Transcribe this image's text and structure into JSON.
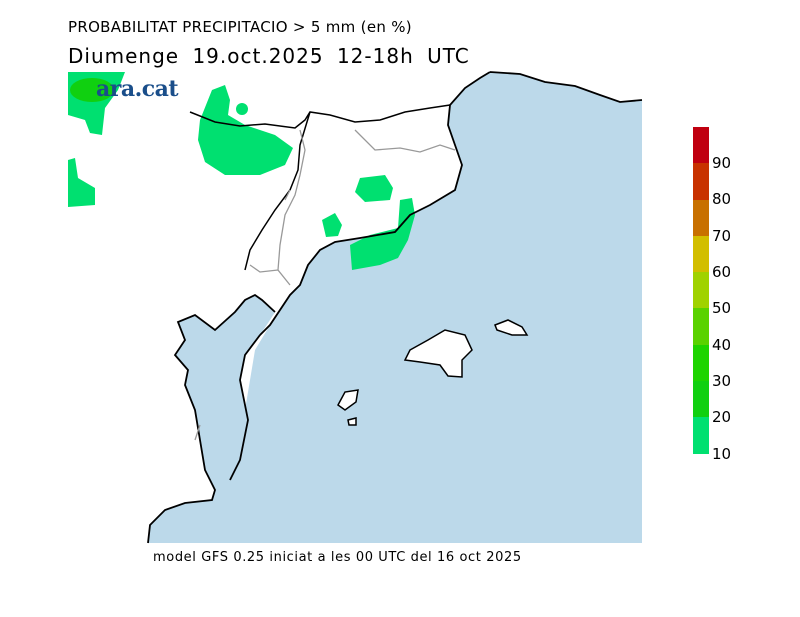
{
  "title": "PROBABILITAT PRECIPITACIO > 5 mm (en %)",
  "subtitle": "Diumenge  19.oct.2025 12-18h UTC",
  "logo": "ara.cat",
  "footer": "model GFS 0.25 iniciat a les 00 UTC del 16 oct 2025",
  "legend": {
    "labels": [
      "90",
      "80",
      "70",
      "60",
      "50",
      "40",
      "30",
      "20",
      "10"
    ],
    "colors": [
      "#c00010",
      "#c83200",
      "#c87000",
      "#d2be00",
      "#a0d200",
      "#5ad200",
      "#1ed400",
      "#10d010",
      "#00e070"
    ]
  },
  "colors": {
    "sea": "#bcd9ea",
    "precip_low": "#00e070"
  }
}
